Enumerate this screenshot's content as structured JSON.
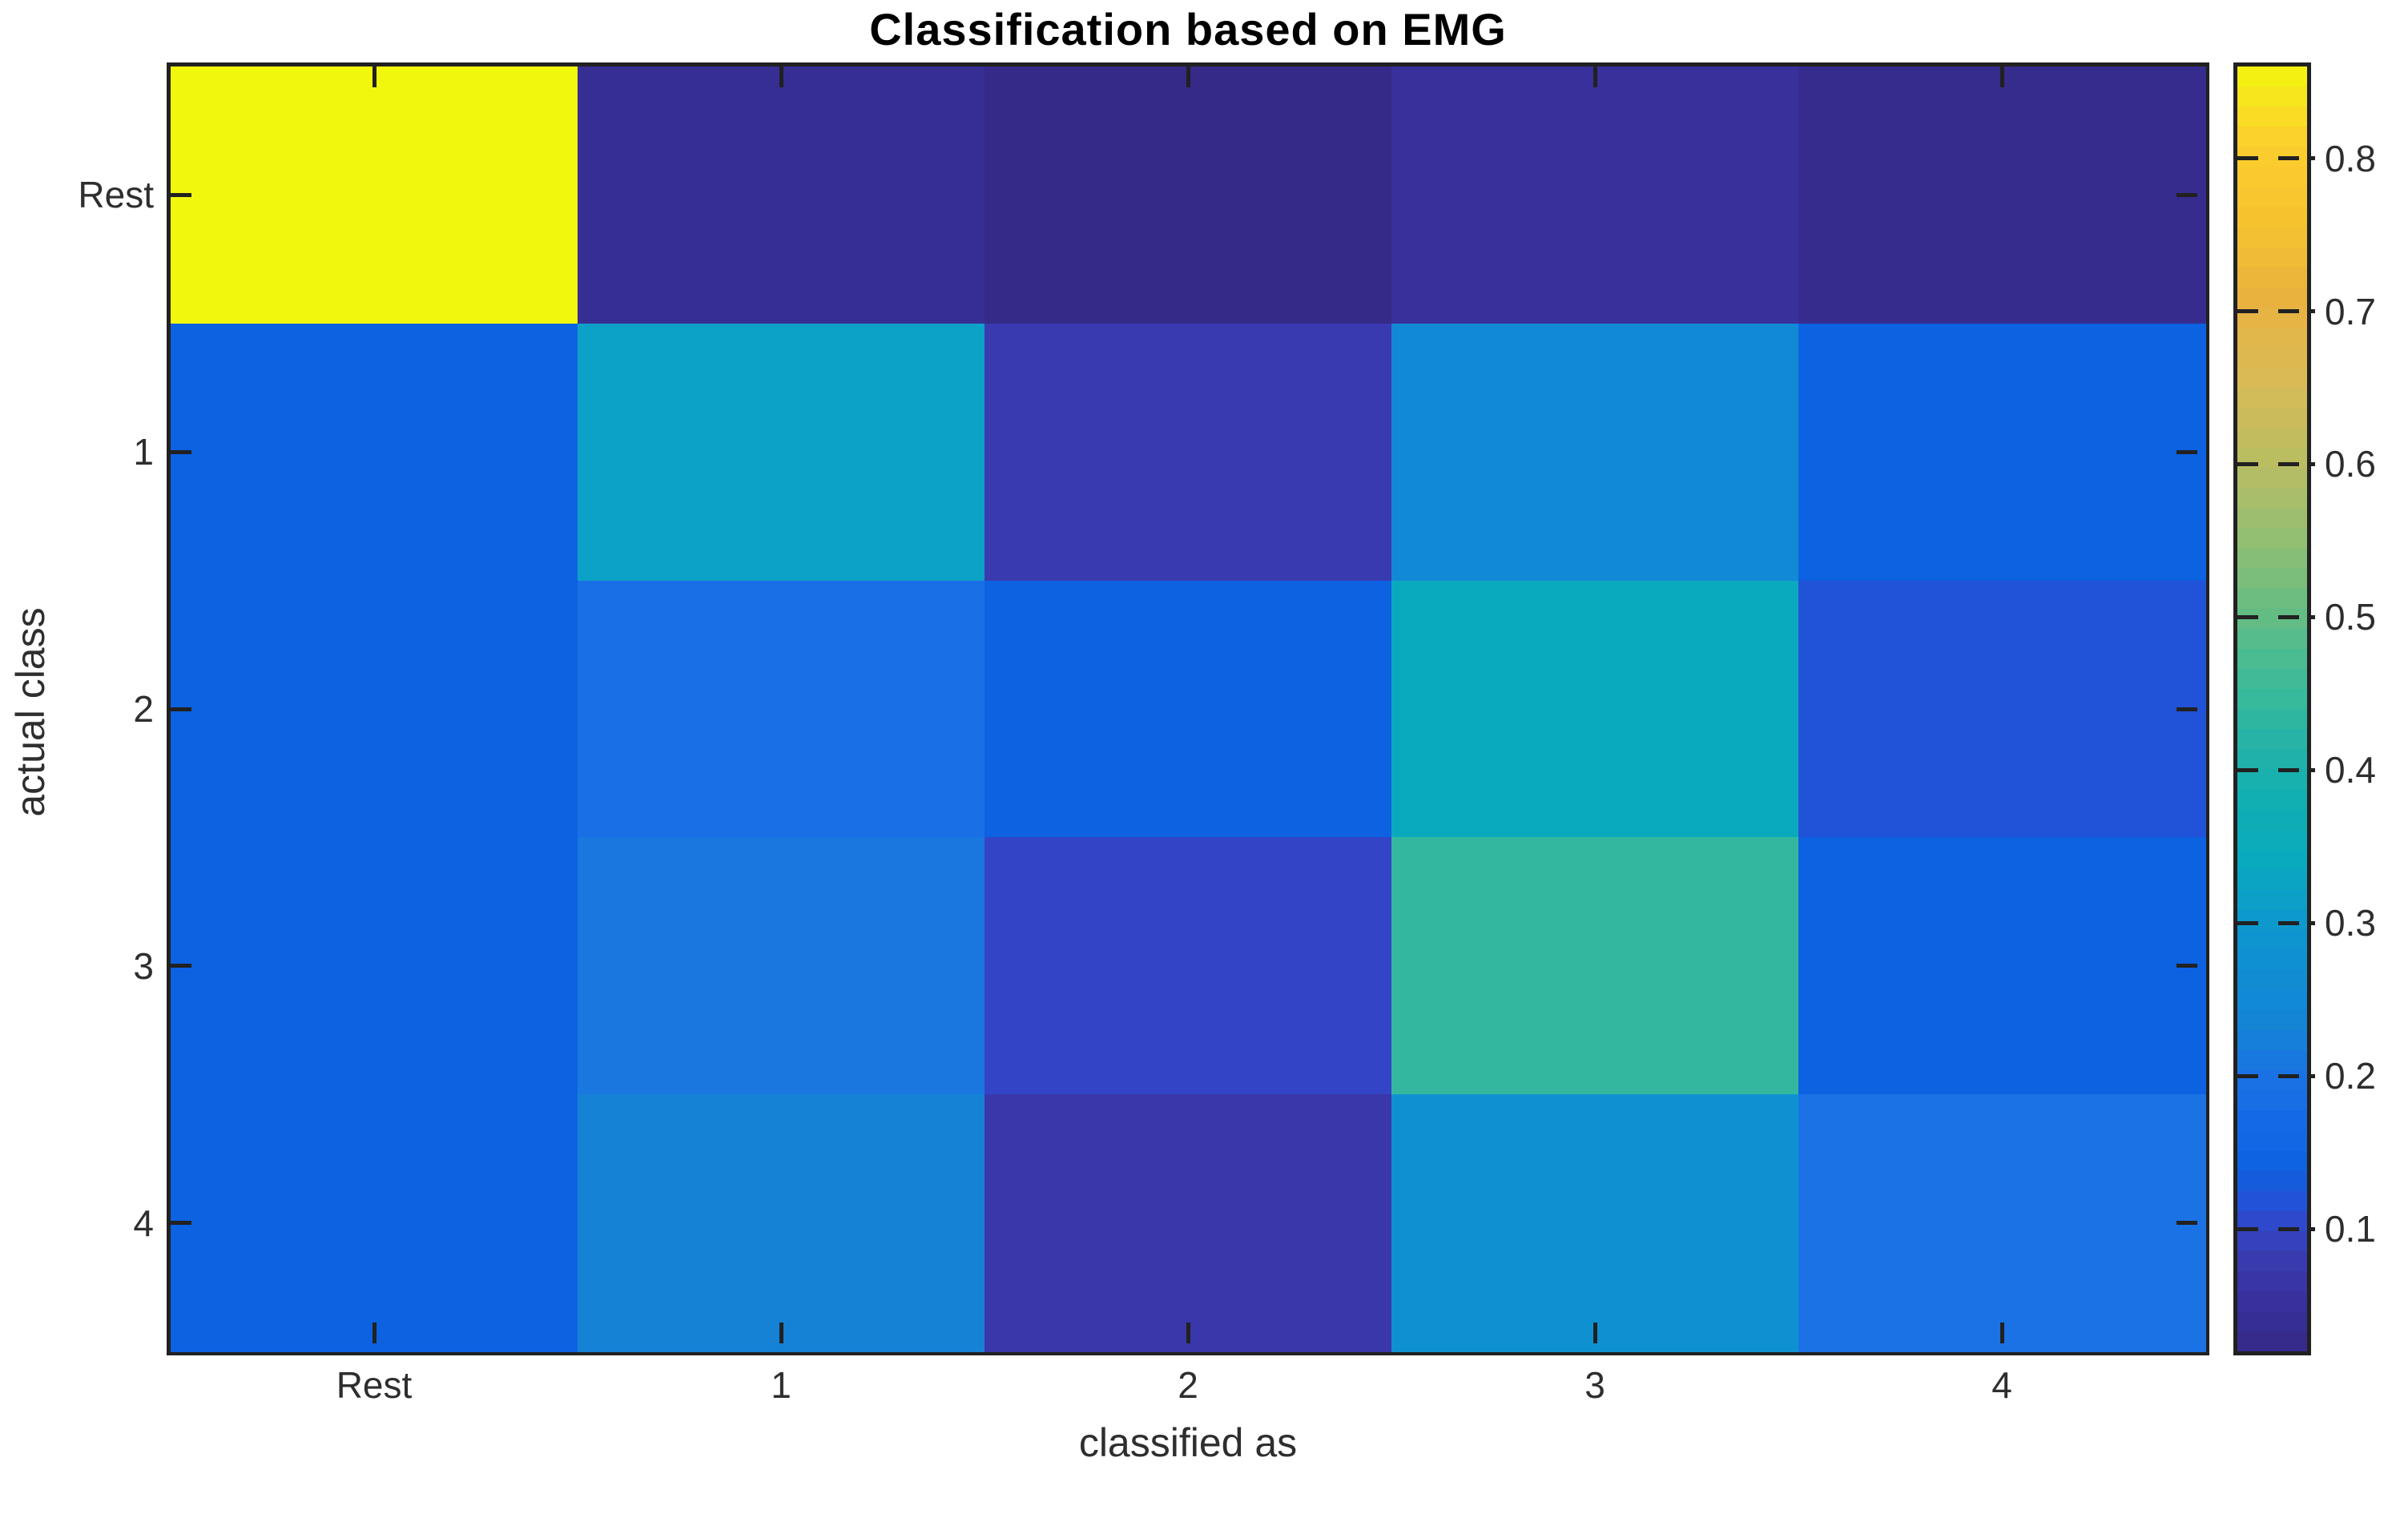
{
  "title": "Classification based on EMG",
  "axes": {
    "xlabel": "classified as",
    "ylabel": "actual class",
    "x_ticklabels": [
      "Rest",
      "1",
      "2",
      "3",
      "4"
    ],
    "y_ticklabels": [
      "Rest",
      "1",
      "2",
      "3",
      "4"
    ]
  },
  "colorbar": {
    "tick_values": [
      0.8,
      0.7,
      0.6,
      0.5,
      0.4,
      0.3,
      0.2,
      0.1
    ],
    "tick_labels": [
      "0.8",
      "0.7",
      "0.6",
      "0.5",
      "0.4",
      "0.3",
      "0.2",
      "0.1"
    ],
    "value_min": 0.02,
    "value_max": 0.86
  },
  "chart_data": {
    "type": "heatmap",
    "title": "Classification based on EMG",
    "xlabel": "classified as",
    "ylabel": "actual class",
    "categories_x": [
      "Rest",
      "1",
      "2",
      "3",
      "4"
    ],
    "categories_y": [
      "Rest",
      "1",
      "2",
      "3",
      "4"
    ],
    "values": [
      [
        0.86,
        0.04,
        0.02,
        0.05,
        0.03
      ],
      [
        0.14,
        0.32,
        0.08,
        0.25,
        0.14
      ],
      [
        0.14,
        0.19,
        0.14,
        0.34,
        0.12
      ],
      [
        0.14,
        0.21,
        0.1,
        0.44,
        0.14
      ],
      [
        0.14,
        0.23,
        0.07,
        0.28,
        0.2
      ]
    ],
    "clim": [
      0.02,
      0.86
    ],
    "colormap": "parula",
    "colormap_stops": [
      [
        0.02,
        "#352a87"
      ],
      [
        0.05,
        "#38309b"
      ],
      [
        0.08,
        "#3a3ab0"
      ],
      [
        0.1,
        "#3345c6"
      ],
      [
        0.12,
        "#2153d8"
      ],
      [
        0.14,
        "#0c62e1"
      ],
      [
        0.17,
        "#146ae6"
      ],
      [
        0.2,
        "#1b72e4"
      ],
      [
        0.235,
        "#1485d4"
      ],
      [
        0.27,
        "#108ed3"
      ],
      [
        0.3,
        "#0d98cd"
      ],
      [
        0.34,
        "#0aaabe"
      ],
      [
        0.38,
        "#10afb2"
      ],
      [
        0.42,
        "#27b4a6"
      ],
      [
        0.46,
        "#3fbb97"
      ],
      [
        0.5,
        "#63bc84"
      ],
      [
        0.55,
        "#92bf73"
      ],
      [
        0.6,
        "#b9bd62"
      ],
      [
        0.655,
        "#d9ba56"
      ],
      [
        0.71,
        "#e9b23f"
      ],
      [
        0.76,
        "#f6c32f"
      ],
      [
        0.81,
        "#fcce2e"
      ],
      [
        0.84,
        "#f7e61b"
      ],
      [
        0.86,
        "#f2f70e"
      ]
    ],
    "colorbar_ticks": [
      0.1,
      0.2,
      0.3,
      0.4,
      0.5,
      0.6,
      0.7,
      0.8
    ],
    "grid": false,
    "legend": "colorbar-right"
  }
}
